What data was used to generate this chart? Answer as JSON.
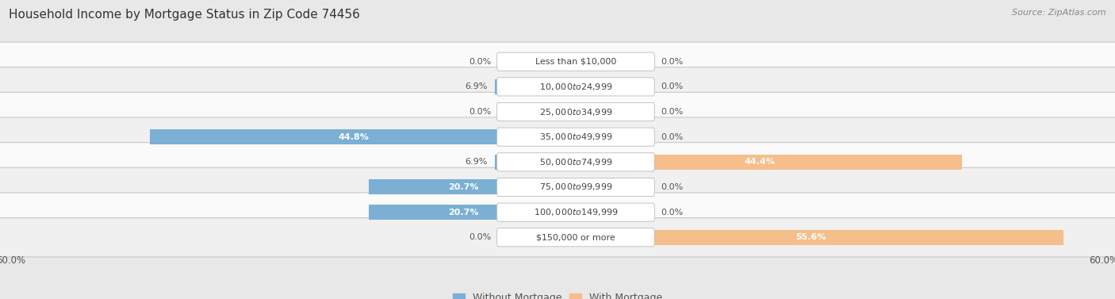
{
  "title": "Household Income by Mortgage Status in Zip Code 74456",
  "source": "Source: ZipAtlas.com",
  "categories": [
    "Less than $10,000",
    "$10,000 to $24,999",
    "$25,000 to $34,999",
    "$35,000 to $49,999",
    "$50,000 to $74,999",
    "$75,000 to $99,999",
    "$100,000 to $149,999",
    "$150,000 or more"
  ],
  "without_mortgage": [
    0.0,
    6.9,
    0.0,
    44.8,
    6.9,
    20.7,
    20.7,
    0.0
  ],
  "with_mortgage": [
    0.0,
    0.0,
    0.0,
    0.0,
    44.4,
    0.0,
    0.0,
    55.6
  ],
  "without_color": "#7BAFD4",
  "with_color": "#F5BE8A",
  "axis_max": 60.0,
  "bg_color": "#e8e8e8",
  "row_color_odd": "#f0f0f0",
  "row_color_even": "#fafafa",
  "title_fontsize": 11,
  "source_fontsize": 8,
  "label_fontsize": 8,
  "tick_fontsize": 8.5,
  "legend_fontsize": 9,
  "bar_height": 0.6
}
